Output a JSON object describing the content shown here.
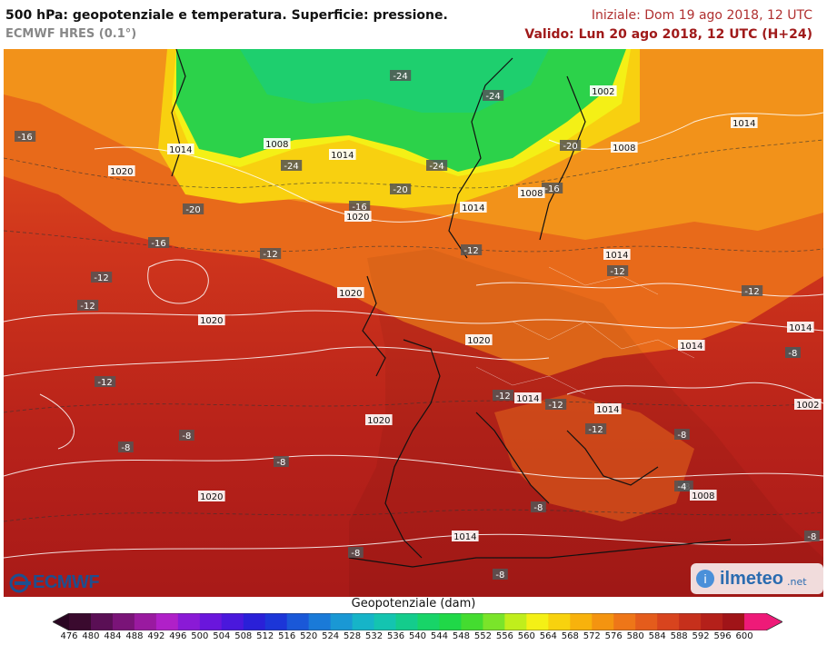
{
  "header": {
    "title": "500 hPa: geopotenziale e temperatura. Superficie: pressione.",
    "model": "ECMWF HRES (0.1°)",
    "initial": "Iniziale: Dom 19 ago 2018, 12 UTC",
    "valid": "Valido: Lun 20 ago 2018, 12 UTC (H+24)"
  },
  "logos": {
    "left": "ECMWF",
    "right": "ilmeteo",
    "right_suffix": ".net"
  },
  "colorbar": {
    "title": "Geopotenziale (dam)",
    "ticks": [
      "476",
      "480",
      "484",
      "488",
      "492",
      "496",
      "500",
      "504",
      "508",
      "512",
      "516",
      "520",
      "524",
      "528",
      "532",
      "536",
      "540",
      "544",
      "548",
      "552",
      "556",
      "560",
      "564",
      "568",
      "572",
      "576",
      "580",
      "584",
      "588",
      "592",
      "596",
      "600"
    ],
    "colors": [
      "#3a0a2e",
      "#5a0f55",
      "#7a1478",
      "#9a1aa0",
      "#b020c8",
      "#8a1ad6",
      "#6a16dc",
      "#4a18dc",
      "#2a20d8",
      "#1c36d8",
      "#1a58d8",
      "#1a7ad8",
      "#1a98d4",
      "#16b4c8",
      "#14c4b0",
      "#14cc8c",
      "#18d468",
      "#20d848",
      "#44dc30",
      "#7ae42a",
      "#c0ee1c",
      "#f4f016",
      "#f8d20e",
      "#f8b20c",
      "#f49410",
      "#ee7618",
      "#e45c1c",
      "#d8441e",
      "#c6301c",
      "#b4201a",
      "#a01418",
      "#ee1a78"
    ]
  },
  "map_labels": {
    "temperature": [
      "-24",
      "-24",
      "-24",
      "-24",
      "-20",
      "-20",
      "-20",
      "-16",
      "-16",
      "-16",
      "-16",
      "-12",
      "-12",
      "-12",
      "-12",
      "-12",
      "-12",
      "-12",
      "-12",
      "-12",
      "-12",
      "-8",
      "-8",
      "-8",
      "-8",
      "-8",
      "-8",
      "-8",
      "-8",
      "-8",
      "-8",
      "-8",
      "-4"
    ],
    "pressure": [
      "1002",
      "1002",
      "1008",
      "1008",
      "1008",
      "1008",
      "1014",
      "1014",
      "1014",
      "1014",
      "1014",
      "1014",
      "1014",
      "1014",
      "1014",
      "1014",
      "1020",
      "1020",
      "1020",
      "1020",
      "1020",
      "1020",
      "1020"
    ]
  }
}
